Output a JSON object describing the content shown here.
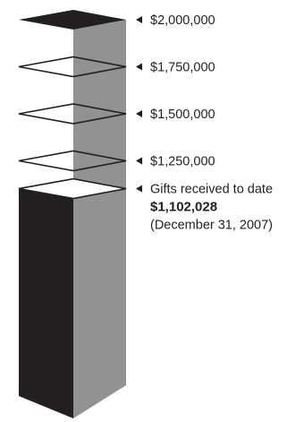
{
  "chart_data": {
    "type": "bar",
    "title": "",
    "xlabel": "",
    "ylabel": "",
    "goal": 2000000,
    "current": 1102028,
    "milestones": [
      {
        "value": 2000000,
        "label": "$2,000,000"
      },
      {
        "value": 1750000,
        "label": "$1,750,000"
      },
      {
        "value": 1500000,
        "label": "$1,500,000"
      },
      {
        "value": 1250000,
        "label": "$1,250,000"
      }
    ],
    "current_label": {
      "line1": "Gifts received to date",
      "line2": "$1,102,028",
      "line3": "(December 31, 2007)"
    },
    "colors": {
      "front_face": "#231f20",
      "side_face": "#929292",
      "top_filled": "#231f20",
      "outline": "#231f20"
    }
  }
}
